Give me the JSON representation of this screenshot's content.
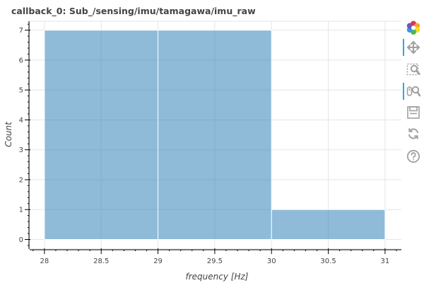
{
  "chart_data": {
    "type": "bar",
    "title": "callback_0: Sub_/sensing/imu/tamagawa/imu_raw",
    "xlabel": "frequency [Hz]",
    "ylabel": "Count",
    "bins": [
      {
        "x0": 28,
        "x1": 29,
        "count": 7
      },
      {
        "x0": 29,
        "x1": 30,
        "count": 7
      },
      {
        "x0": 30,
        "x1": 31,
        "count": 1
      }
    ],
    "xlim": [
      27.87,
      31.15
    ],
    "ylim": [
      -0.32,
      7.3
    ],
    "x_ticks": [
      28,
      28.5,
      29,
      29.5,
      30,
      30.5,
      31
    ],
    "x_tick_labels": [
      "28",
      "28.5",
      "29",
      "29.5",
      "30",
      "30.5",
      "31"
    ],
    "y_ticks": [
      0,
      1,
      2,
      3,
      4,
      5,
      6,
      7
    ],
    "y_tick_labels": [
      "0",
      "1",
      "2",
      "3",
      "4",
      "5",
      "6",
      "7"
    ],
    "grid": true,
    "bar_color": "#1f77b4",
    "bar_opacity": 0.5
  },
  "toolbar": {
    "tools": [
      {
        "name": "bokeh-logo-icon",
        "active": false,
        "interactable": true
      },
      {
        "name": "pan-icon",
        "active": true,
        "interactable": true
      },
      {
        "name": "box-zoom-icon",
        "active": false,
        "interactable": true
      },
      {
        "name": "wheel-zoom-icon",
        "active": true,
        "interactable": true
      },
      {
        "name": "save-icon",
        "active": false,
        "interactable": true
      },
      {
        "name": "reset-icon",
        "active": false,
        "interactable": true
      },
      {
        "name": "help-icon",
        "active": false,
        "interactable": true
      }
    ],
    "accent_color": "#26aae1",
    "icon_color": "#a0a0a0"
  }
}
